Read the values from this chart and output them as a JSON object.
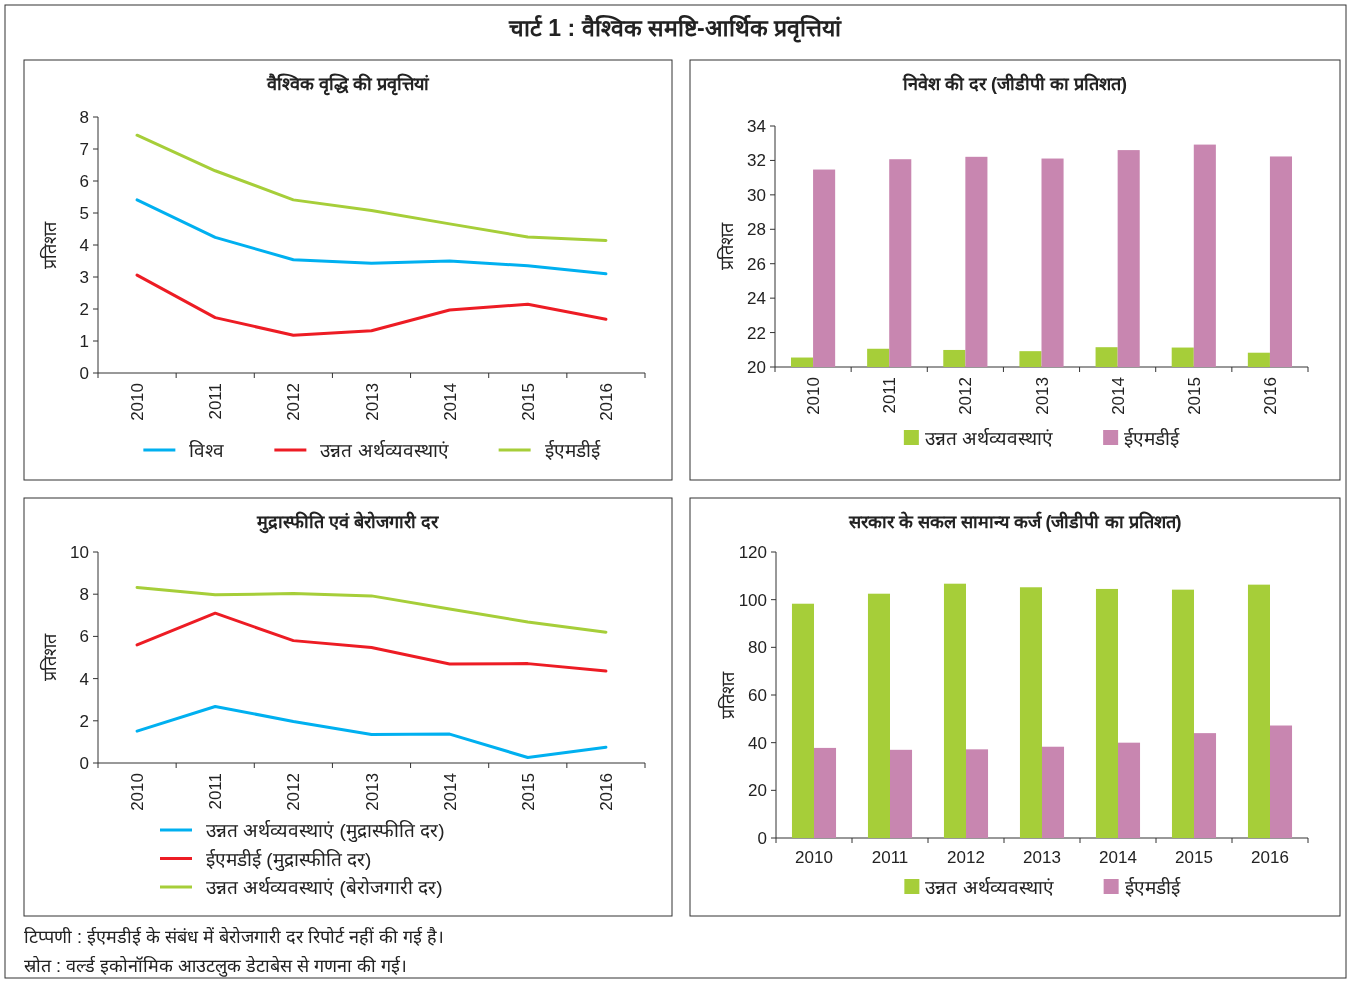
{
  "chart_data": [
    {
      "type": "line",
      "title": "वैश्विक वृद्धि की प्रवृत्तियां",
      "ylabel": "प्रतिशत",
      "categories": [
        "2010",
        "2011",
        "2012",
        "2013",
        "2014",
        "2015",
        "2016"
      ],
      "ylim": [
        0,
        8
      ],
      "yticks": [
        0,
        1,
        2,
        3,
        4,
        5,
        6,
        7,
        8
      ],
      "legend": "bottom",
      "annotations": [
        "चार्ट 1 : वैश्विक समष्टि-आर्थिक प्रवृत्तियां"
      ],
      "series": [
        {
          "name": "विश्व",
          "color": "#00b0f0",
          "values": [
            5.41,
            4.24,
            3.54,
            3.43,
            3.5,
            3.35,
            3.1
          ]
        },
        {
          "name": "उन्नत अर्थव्यवस्थाएं",
          "color": "#ed1c24",
          "values": [
            3.06,
            1.73,
            1.18,
            1.32,
            1.97,
            2.15,
            1.68
          ]
        },
        {
          "name": "ईएमडीई",
          "color": "#a6ce39",
          "values": [
            7.43,
            6.32,
            5.41,
            5.08,
            4.66,
            4.25,
            4.14
          ]
        }
      ]
    },
    {
      "type": "bar",
      "title": "निवेश की दर (जीडीपी का प्रतिशत)",
      "ylabel": "प्रतिशत",
      "categories": [
        "2010",
        "2011",
        "2012",
        "2013",
        "2014",
        "2015",
        "2016"
      ],
      "ylim": [
        20,
        34
      ],
      "yticks": [
        20,
        22,
        24,
        26,
        28,
        30,
        32,
        34
      ],
      "legend": "bottom",
      "series": [
        {
          "name": "उन्नत अर्थव्यवस्थाएं",
          "color": "#a6ce39",
          "values": [
            20.55,
            21.06,
            20.99,
            20.92,
            21.15,
            21.13,
            20.83
          ]
        },
        {
          "name": "ईएमडीई",
          "color": "#c886b0",
          "values": [
            31.47,
            32.07,
            32.21,
            32.11,
            32.6,
            32.92,
            32.23
          ]
        }
      ]
    },
    {
      "type": "line",
      "title": "मुद्रास्फीति एवं बेरोजगारी दर",
      "ylabel": "प्रतिशत",
      "categories": [
        "2010",
        "2011",
        "2012",
        "2013",
        "2014",
        "2015",
        "2016"
      ],
      "ylim": [
        0,
        10
      ],
      "yticks": [
        0,
        2,
        4,
        6,
        8,
        10
      ],
      "legend": "bottom",
      "annotations": [
        "टिप्पणी : ईएमडीई के संबंध में बेरोजगारी दर रिपोर्ट नहीं की गई है।",
        "स्रोत : वर्ल्ड इकोनॉमिक आउटलुक डेटाबेस से गणना की गई।"
      ],
      "series": [
        {
          "name": "उन्नत अर्थव्यवस्थाएं (मुद्रास्फीति दर)",
          "color": "#00b0f0",
          "values": [
            1.51,
            2.68,
            1.97,
            1.35,
            1.37,
            0.26,
            0.75
          ]
        },
        {
          "name": "ईएमडीई (मुद्रास्फीति दर)",
          "color": "#ed1c24",
          "values": [
            5.6,
            7.1,
            5.8,
            5.47,
            4.69,
            4.71,
            4.36
          ]
        },
        {
          "name": "उन्नत अर्थव्यवस्थाएं (बेरोजगारी दर)",
          "color": "#a6ce39",
          "values": [
            8.32,
            7.97,
            8.03,
            7.92,
            7.3,
            6.68,
            6.2
          ]
        }
      ]
    },
    {
      "type": "bar",
      "title": "सरकार के सकल सामान्य कर्ज (जीडीपी का प्रतिशत)",
      "ylabel": "प्रतिशत",
      "categories": [
        "2010",
        "2011",
        "2012",
        "2013",
        "2014",
        "2015",
        "2016"
      ],
      "ylim": [
        0,
        120
      ],
      "yticks": [
        0,
        20,
        40,
        60,
        80,
        100,
        120
      ],
      "legend": "bottom",
      "series": [
        {
          "name": "उन्नत अर्थव्यवस्थाएं",
          "color": "#a6ce39",
          "values": [
            98.3,
            102.5,
            106.7,
            105.2,
            104.5,
            104.2,
            106.3
          ]
        },
        {
          "name": "ईएमडीई",
          "color": "#c886b0",
          "values": [
            37.8,
            37.0,
            37.2,
            38.3,
            40.0,
            44.0,
            47.2
          ]
        }
      ]
    }
  ]
}
